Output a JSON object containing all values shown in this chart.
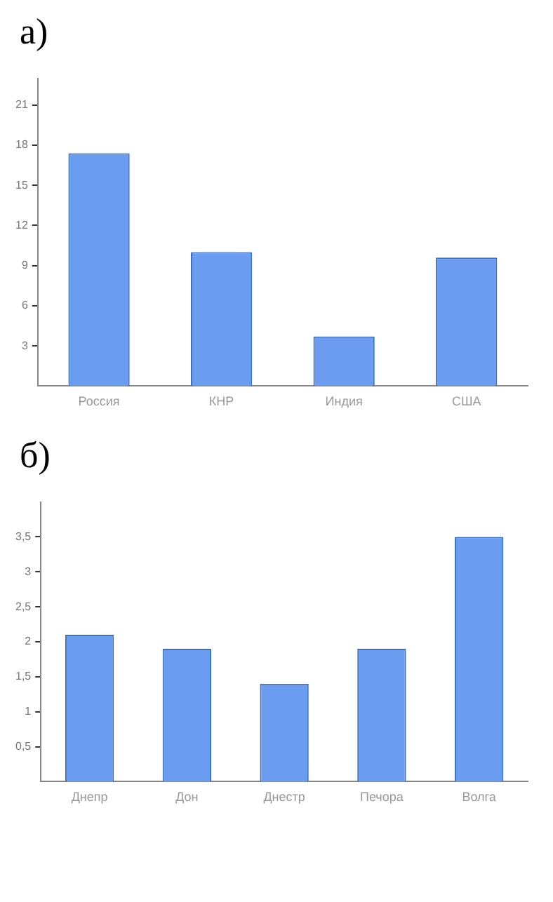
{
  "chart_data": [
    {
      "type": "bar",
      "title": "а)",
      "categories": [
        "Россия",
        "КНР",
        "Индия",
        "США"
      ],
      "values": [
        17.4,
        10,
        3.7,
        9.6
      ],
      "color": "#6a9cf0",
      "ylim": [
        0,
        23
      ],
      "yticks": [
        3,
        6,
        9,
        12,
        15,
        18,
        21
      ],
      "grid": false
    },
    {
      "type": "bar",
      "title": "б)",
      "categories": [
        "Днепр",
        "Дон",
        "Днестр",
        "Печора",
        "Волга"
      ],
      "values": [
        2.1,
        1.9,
        1.4,
        1.9,
        3.5
      ],
      "color": "#6a9cf0",
      "ylim": [
        0,
        4
      ],
      "yticks": [
        {
          "value": 0.5,
          "label": "0,5"
        },
        1,
        {
          "value": 1.5,
          "label": "1,5"
        },
        2,
        {
          "value": 2.5,
          "label": "2,5"
        },
        3,
        {
          "value": 3.5,
          "label": "3,5"
        }
      ],
      "grid": false
    }
  ]
}
